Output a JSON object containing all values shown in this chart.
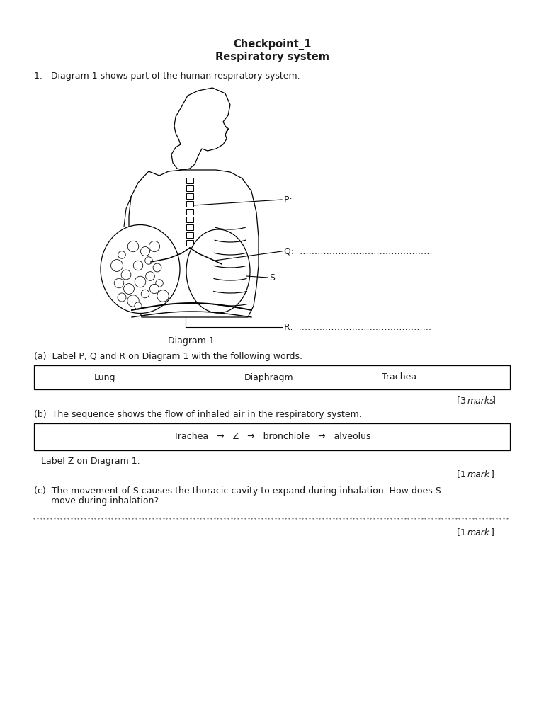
{
  "title_line1": "Checkpoint_1",
  "title_line2": "Respiratory system",
  "q1_text": "1.   Diagram 1 shows part of the human respiratory system.",
  "diagram_caption": "Diagram 1",
  "label_P": "P:  ………………………………………",
  "label_Q": "Q:  ………………………………………",
  "label_S": "S",
  "label_R": "R:  ………………………………………",
  "part_a_intro": "(a)  Label P, Q and R on Diagram 1 with the following words.",
  "box_a_words": [
    "Lung",
    "Diaphragm",
    "Trachea"
  ],
  "marks_a_num": "3",
  "marks_a_word": "marks",
  "part_b_intro": "(b)  The sequence shows the flow of inhaled air in the respiratory system.",
  "box_b_seq": "Trachea   →   Z   →   bronchiole   →   alveolus",
  "label_z": "Label Z on Diagram 1.",
  "marks_b_num": "1",
  "marks_b_word": "mark",
  "part_c_line1": "(c)  The movement of S causes the thoracic cavity to expand during inhalation. How does S",
  "part_c_line2": "      move during inhalation?",
  "marks_c_num": "1",
  "marks_c_word": "mark",
  "bg_color": "#ffffff",
  "text_color": "#1a1a1a",
  "fs_title": 10.5,
  "fs_body": 9.0
}
